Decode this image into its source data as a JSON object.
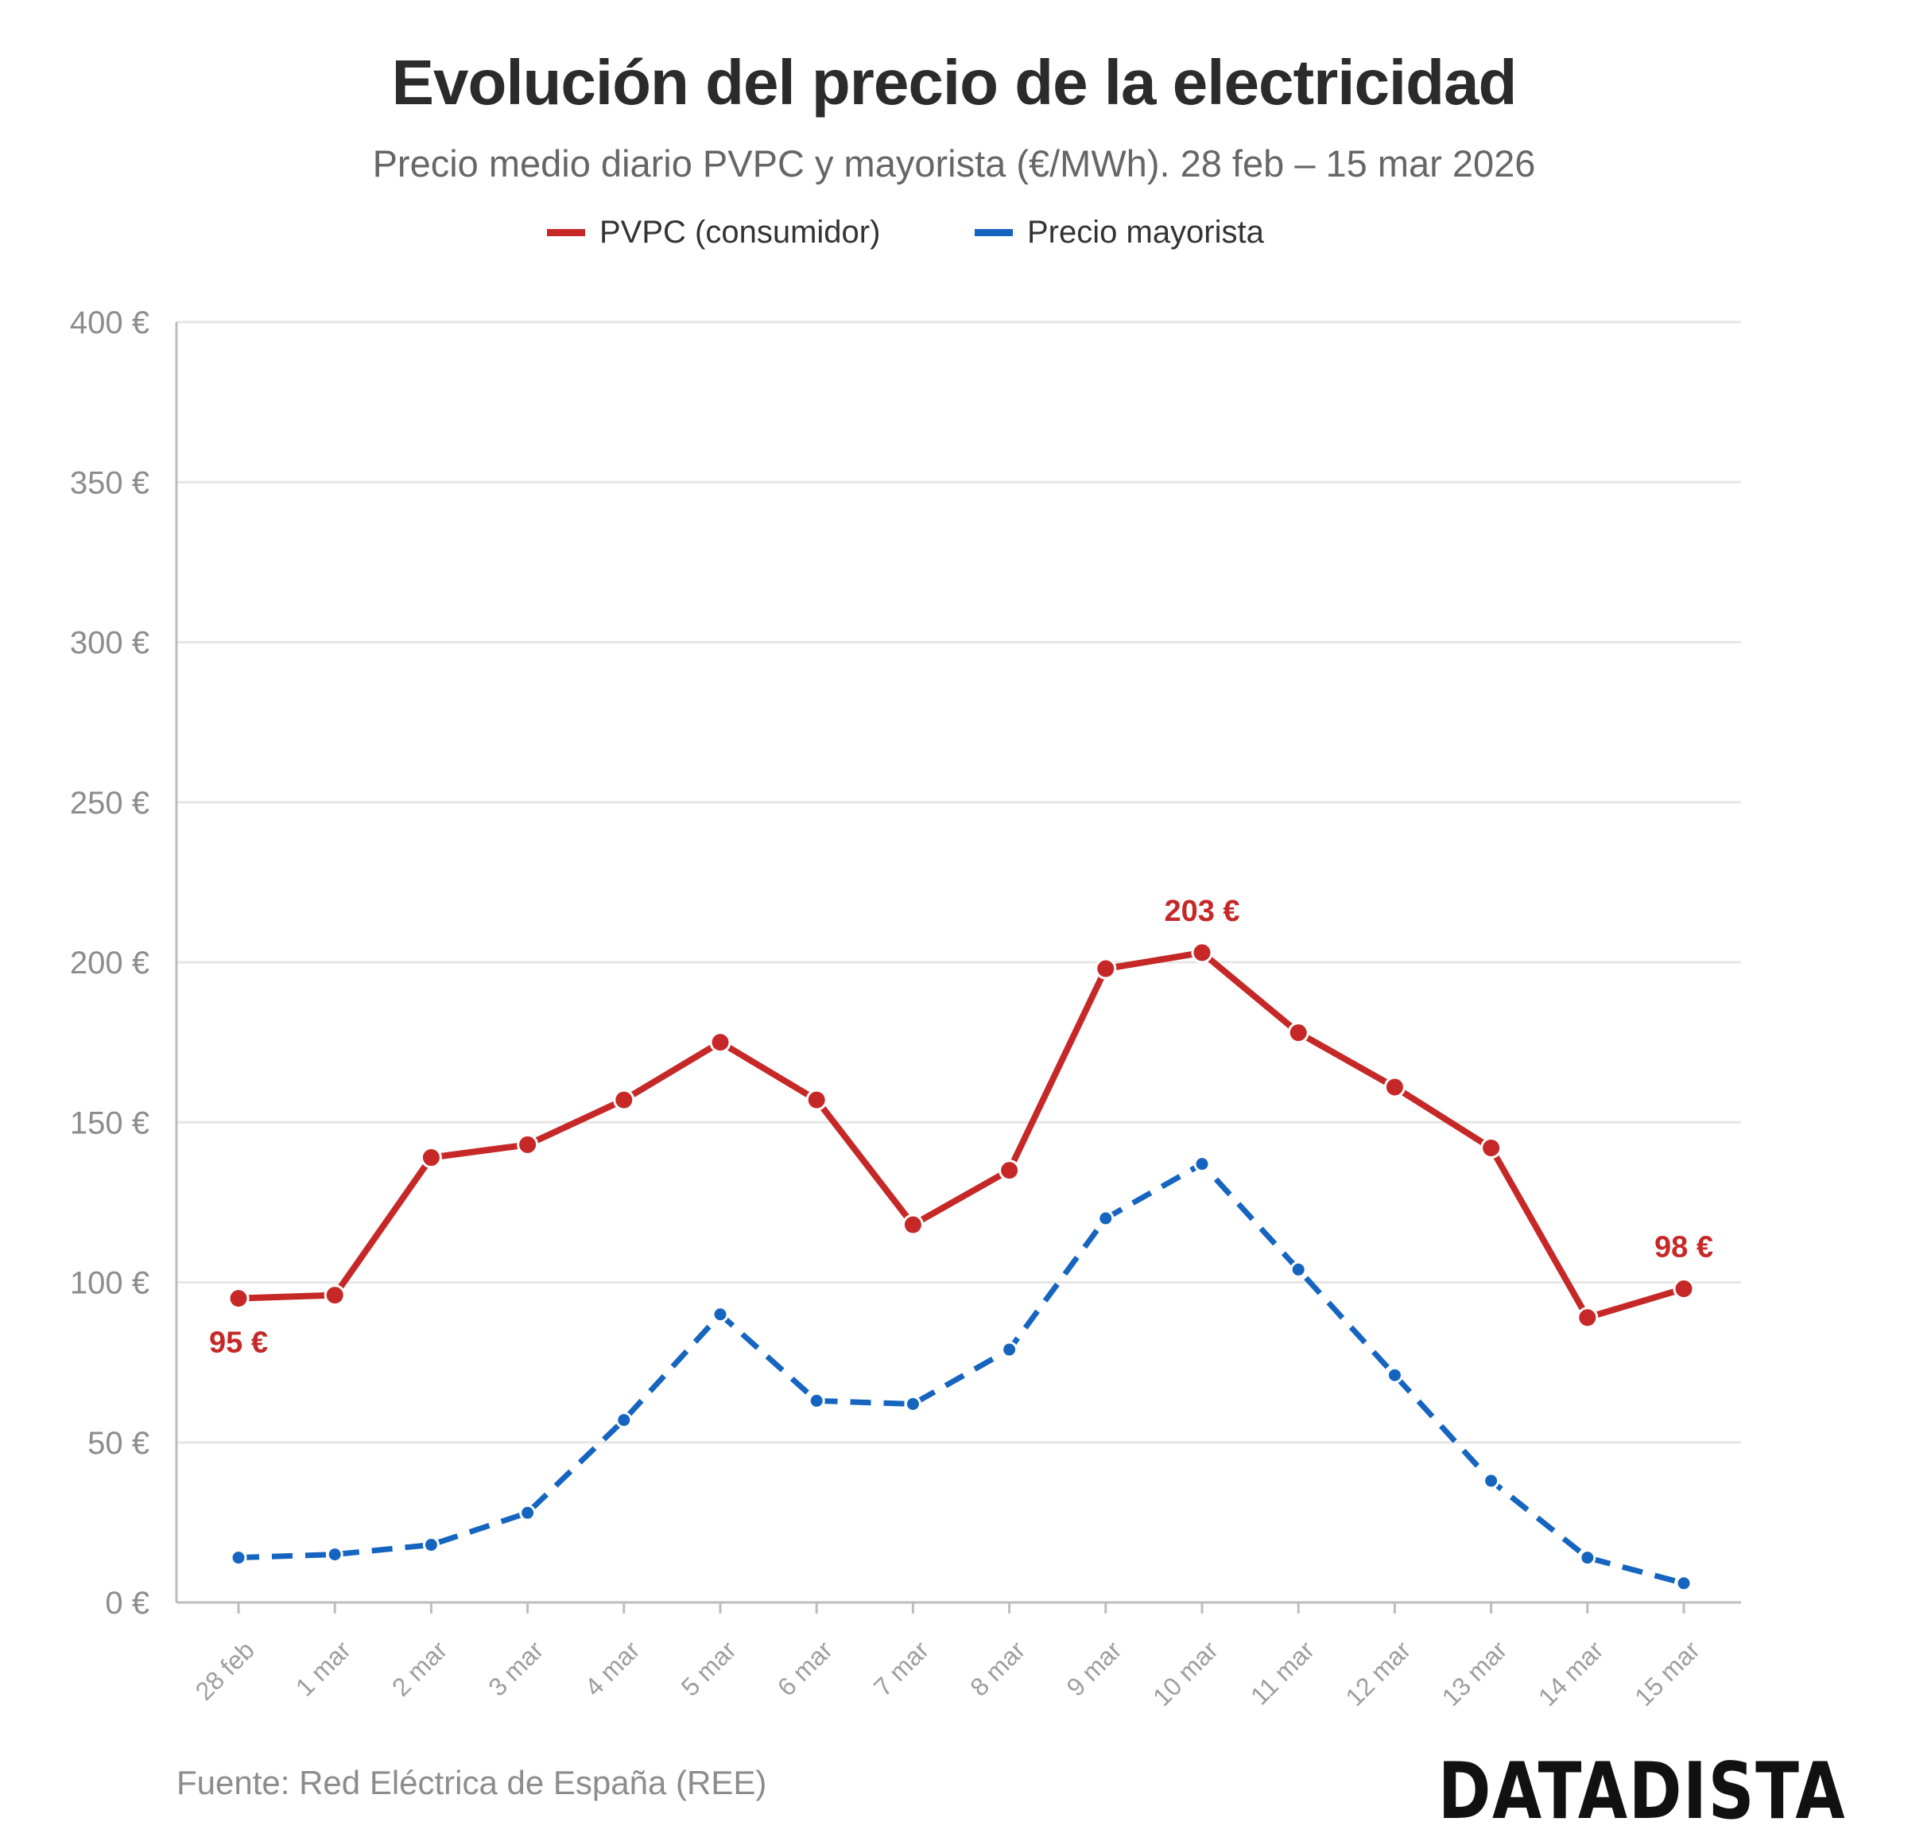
{
  "header": {
    "title": "Evolución del precio de la electricidad",
    "subtitle": "Precio medio diario PVPC y mayorista (€/MWh). 28 feb – 15 mar 2026"
  },
  "legend": {
    "pvpc": "PVPC (consumidor)",
    "wholesale": "Precio mayorista"
  },
  "colors": {
    "pvpc": "#c62828",
    "wholesale": "#1565c0",
    "grid": "#e6e6e6",
    "axis": "#bdbdbd",
    "tick_text": "#8c8c8c"
  },
  "footer": {
    "source": "Fuente: Red Eléctrica de España (REE)",
    "brand": "DATADISTA"
  },
  "chart_data": {
    "type": "line",
    "categories": [
      "28 feb",
      "1 mar",
      "2 mar",
      "3 mar",
      "4 mar",
      "5 mar",
      "6 mar",
      "7 mar",
      "8 mar",
      "9 mar",
      "10 mar",
      "11 mar",
      "12 mar",
      "13 mar",
      "14 mar",
      "15 mar"
    ],
    "series": [
      {
        "key": "pvpc",
        "name": "PVPC (consumidor)",
        "style": "solid",
        "values": [
          95,
          96,
          139,
          143,
          157,
          175,
          157,
          118,
          135,
          198,
          203,
          178,
          161,
          142,
          89,
          98
        ]
      },
      {
        "key": "wholesale",
        "name": "Precio mayorista",
        "style": "dashed",
        "values": [
          14,
          15,
          18,
          28,
          57,
          90,
          63,
          62,
          79,
          120,
          137,
          104,
          71,
          38,
          14,
          6
        ]
      }
    ],
    "y_ticks": [
      0,
      50,
      100,
      150,
      200,
      250,
      300,
      350,
      400
    ],
    "y_tick_labels": [
      "0 €",
      "50 €",
      "100 €",
      "150 €",
      "200 €",
      "250 €",
      "300 €",
      "350 €",
      "400 €"
    ],
    "ylim": [
      0,
      400
    ],
    "grid": true,
    "legend_position": "top-center",
    "annotations": [
      {
        "series": "pvpc",
        "index": 0,
        "text": "95 €",
        "placement": "below"
      },
      {
        "series": "pvpc",
        "index": 10,
        "text": "203 €",
        "placement": "above"
      },
      {
        "series": "pvpc",
        "index": 15,
        "text": "98 €",
        "placement": "above"
      }
    ]
  }
}
